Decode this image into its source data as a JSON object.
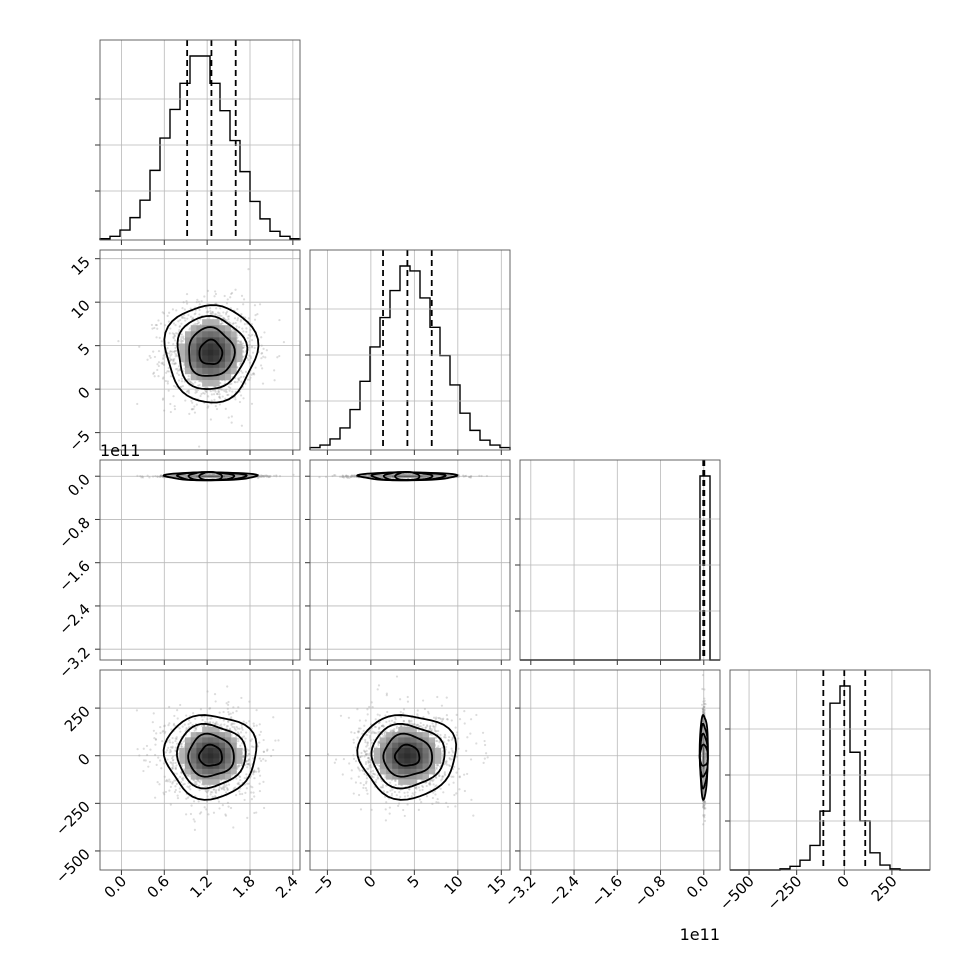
{
  "chart_data": {
    "type": "corner",
    "title": "",
    "parameters": [
      {
        "index": 0,
        "range": [
          -0.3,
          2.5
        ],
        "ticks": [
          0.0,
          0.6,
          1.2,
          1.8,
          2.4
        ],
        "tick_labels": [
          "0.0",
          "0.6",
          "1.2",
          "1.8",
          "2.4"
        ],
        "offset_label": "",
        "mean": 1.25,
        "std": 0.32,
        "quantiles": [
          0.92,
          1.26,
          1.6
        ]
      },
      {
        "index": 1,
        "range": [
          -7,
          16
        ],
        "ticks": [
          -5,
          0,
          5,
          10,
          15
        ],
        "tick_labels": [
          "−5",
          "0",
          "5",
          "10",
          "15"
        ],
        "offset_label": "",
        "mean": 4.2,
        "std": 2.8,
        "quantiles": [
          1.4,
          4.2,
          7.0
        ]
      },
      {
        "index": 2,
        "range": [
          -3.4,
          0.3
        ],
        "ticks": [
          -3.2,
          -2.4,
          -1.6,
          -0.8,
          0.0
        ],
        "tick_labels": [
          "−3.2",
          "−2.4",
          "−1.6",
          "−0.8",
          "0.0"
        ],
        "offset_label": "1e11",
        "mean": 0.0,
        "std": 0.012,
        "quantiles": [
          -0.01,
          0.0,
          0.01
        ]
      },
      {
        "index": 3,
        "range": [
          -600,
          450
        ],
        "ticks": [
          -500,
          -250,
          0,
          250
        ],
        "tick_labels": [
          "−500",
          "−250",
          "0",
          "250"
        ],
        "offset_label": "",
        "mean": 0,
        "std": 110,
        "quantiles": [
          -110,
          0,
          110
        ]
      }
    ],
    "histograms": [
      {
        "param": 0,
        "bins": 20,
        "values": [
          1,
          3,
          8,
          18,
          32,
          56,
          82,
          105,
          126,
          148,
          148,
          126,
          104,
          80,
          55,
          31,
          17,
          7,
          3,
          1
        ]
      },
      {
        "param": 1,
        "bins": 20,
        "values": [
          2,
          4,
          9,
          18,
          33,
          56,
          84,
          108,
          130,
          150,
          146,
          124,
          100,
          77,
          53,
          30,
          16,
          8,
          4,
          2
        ]
      },
      {
        "param": 2,
        "bins": 20,
        "values": [
          0,
          0,
          0,
          0,
          0,
          0,
          0,
          0,
          0,
          0,
          0,
          0,
          0,
          0,
          0,
          0,
          0,
          0,
          150,
          0
        ]
      },
      {
        "param": 3,
        "bins": 20,
        "values": [
          0,
          0,
          0,
          0,
          0,
          1,
          3,
          8,
          20,
          48,
          136,
          150,
          96,
          40,
          14,
          4,
          1,
          0,
          0,
          0
        ]
      }
    ],
    "grid": true,
    "contour_levels_sigma": [
      0.5,
      1.0,
      1.5,
      2.0
    ],
    "scatter_samples_per_panel": 1400
  }
}
